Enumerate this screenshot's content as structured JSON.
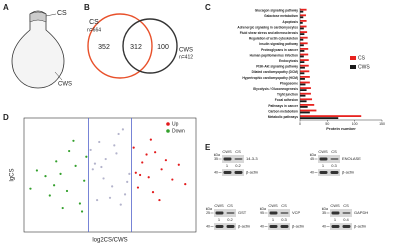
{
  "panel_labels": [
    "A",
    "B",
    "C",
    "D",
    "E"
  ],
  "panel_a": {
    "labels": [
      "CS",
      "CWS"
    ]
  },
  "venn": {
    "sets": [
      {
        "name": "CS",
        "n_label": "n=664",
        "color": "#e8502a"
      },
      {
        "name": "CWS",
        "n_label": "n=412",
        "color": "#333333"
      }
    ],
    "regions": [
      352,
      312,
      100
    ]
  },
  "chart_data": [
    {
      "type": "barh",
      "x_label": "Protein number",
      "categories": [
        "Glucagon signaling pathway",
        "Galactose metabolism",
        "Apoptosis",
        "Adrenergic signaling in cardiomyocytes",
        "Fluid shear stress and atherosclerosis",
        "Regulation of actin cytoskeleton",
        "Insulin signaling pathway",
        "Proteoglycans in cancer",
        "Human papillomavirus infection",
        "Endocytosis",
        "PI3K-Akt signaling pathway",
        "Dilated cardiomyopathy (DCM)",
        "Hypertrophic cardiomyopathy (HCM)",
        "Phagosome",
        "Glycolysis / Gluconeogenesis",
        "Tight junction",
        "Focal adhesion",
        "Pathways in cancer",
        "Carbon metabolism",
        "Metabolic pathways"
      ],
      "series": [
        {
          "name": "CS",
          "color": "#e8231f",
          "values": [
            12,
            11,
            12,
            12,
            13,
            14,
            14,
            15,
            15,
            16,
            16,
            17,
            18,
            18,
            20,
            20,
            22,
            26,
            30,
            112
          ]
        },
        {
          "name": "CWS",
          "color": "#1a1a1a",
          "values": [
            6,
            6,
            5,
            7,
            8,
            6,
            7,
            8,
            7,
            8,
            9,
            8,
            9,
            10,
            12,
            10,
            12,
            14,
            18,
            70
          ]
        }
      ],
      "xlim": [
        0,
        150
      ],
      "xticks": [
        0,
        50,
        100,
        150
      ]
    },
    {
      "type": "scatter",
      "x_label": "log2CS/CWS",
      "y_label": "lgCS",
      "xlim": [
        -4,
        4
      ],
      "ylim": [
        0,
        10
      ],
      "vlines": [
        -1,
        1
      ],
      "vline_color": "#5566cc",
      "series": [
        {
          "name": "Up",
          "color": "#e31a1c",
          "x": [
            1.2,
            1.5,
            1.8,
            2.1,
            2.4,
            1.3,
            1.7,
            2.9,
            3.2,
            1.1,
            2.0,
            2.6,
            1.4,
            3.5,
            1.9,
            2.3
          ],
          "values": [
            5.2,
            6.1,
            4.8,
            7.0,
            5.5,
            3.9,
            6.8,
            4.6,
            5.9,
            7.4,
            3.5,
            6.3,
            5.0,
            4.2,
            8.1,
            2.8
          ]
        },
        {
          "name": "Down",
          "color": "#33a02c",
          "x": [
            -1.2,
            -1.6,
            -2.0,
            -2.5,
            -3.0,
            -1.4,
            -1.9,
            -2.8,
            -3.4,
            -1.1,
            -2.2,
            -2.6,
            -1.7,
            -3.7,
            -2.3,
            -1.3
          ],
          "values": [
            4.5,
            5.8,
            3.6,
            6.2,
            4.9,
            2.5,
            7.1,
            3.2,
            5.4,
            6.6,
            2.1,
            4.1,
            8.0,
            3.8,
            5.1,
            1.8
          ]
        },
        {
          "color": "#b4b4cc",
          "x": [
            -0.8,
            -0.5,
            -0.2,
            0.1,
            0.4,
            0.7,
            -0.6,
            0.3,
            0.9,
            -0.9,
            0.0,
            0.6,
            -0.3,
            0.5,
            -0.7,
            0.2,
            0.8,
            -0.4
          ],
          "values": [
            5.5,
            7.9,
            6.4,
            4.0,
            8.6,
            3.3,
            2.8,
            6.9,
            5.1,
            7.2,
            3.0,
            9.0,
            4.7,
            2.4,
            6.0,
            7.6,
            4.4,
            5.7
          ]
        }
      ]
    }
  ],
  "blots": {
    "unit": "kDa",
    "lanes": [
      "CWS",
      "CS"
    ],
    "loading": "β-actin",
    "items": [
      {
        "target": "14-3-3",
        "mw_target": "35",
        "mw_loading": "40",
        "quant": [
          1,
          0.2
        ]
      },
      {
        "target": "ENOLASE",
        "mw_target": "45",
        "mw_loading": "40",
        "quant": [
          1,
          0.3
        ]
      },
      {
        "target": "GST",
        "mw_target": "25",
        "mw_loading": "40",
        "quant": [
          1,
          0.2
        ]
      },
      {
        "target": "VCP",
        "mw_target": "95",
        "mw_loading": "40",
        "quant": [
          1,
          0.3
        ]
      },
      {
        "target": "GAPDH",
        "mw_target": "35",
        "mw_loading": "40",
        "quant": [
          1,
          0.4
        ]
      }
    ]
  }
}
